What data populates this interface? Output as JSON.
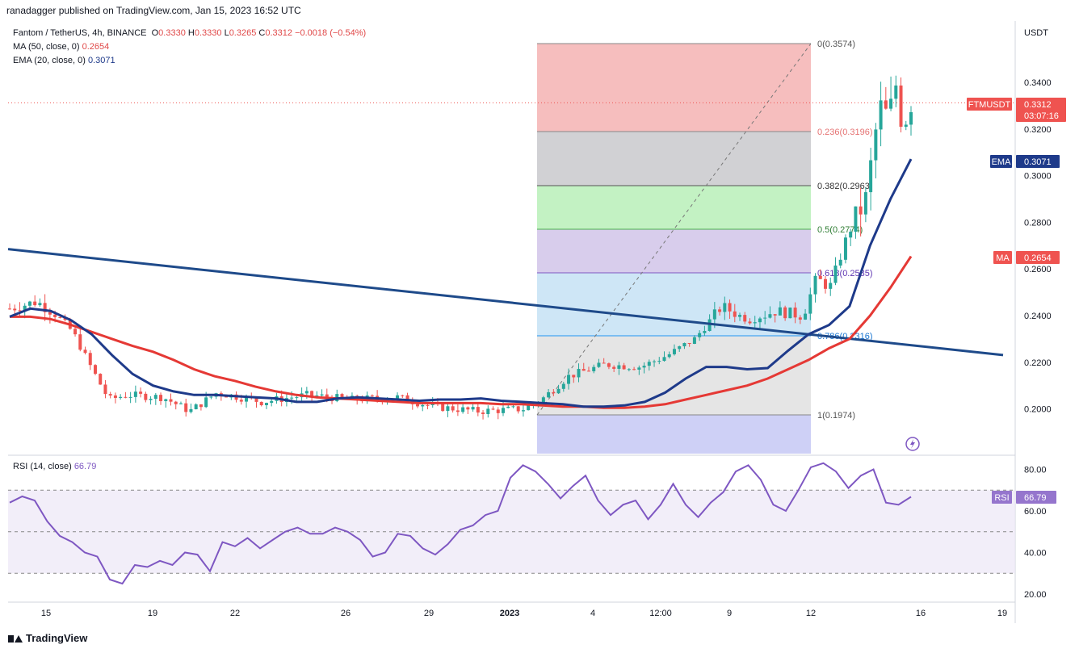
{
  "header": {
    "publisher": "ranadagger published on TradingView.com, Jan 15, 2023 16:52 UTC"
  },
  "legend": {
    "symbol": "Fantom / TetherUS, 4h, BINANCE",
    "ohlc": [
      {
        "k": "O",
        "v": "0.3330"
      },
      {
        "k": "H",
        "v": "0.3330"
      },
      {
        "k": "L",
        "v": "0.3265"
      },
      {
        "k": "C",
        "v": "0.3312"
      }
    ],
    "change": "−0.0018 (−0.54%)",
    "ma_label": "MA (50, close, 0)",
    "ma_value": "0.2654",
    "ema_label": "EMA (20, close, 0)",
    "ema_value": "0.3071",
    "rsi_label": "RSI (14, close)",
    "rsi_value": "66.79"
  },
  "badges": {
    "ticker": "FTMUSDT",
    "price": "0.3312",
    "countdown": "03:07:16",
    "ema_label": "EMA",
    "ema_value": "0.3071",
    "ma_label": "MA",
    "ma_value": "0.2654",
    "rsi_label": "RSI",
    "rsi_value": "66.79"
  },
  "footer": {
    "brand": "TradingView"
  },
  "colors": {
    "up": "#26a69a",
    "down": "#ef5350",
    "ema": "#1e3a8a",
    "ma": "#e53935",
    "rsi": "#7e57c2",
    "trendline": "#1e4a8a"
  },
  "chart_data": {
    "type": "candlestick",
    "price_axis": {
      "currency": "USDT",
      "ticks": [
        "0.3400",
        "0.3200",
        "0.3000",
        "0.2800",
        "0.2600",
        "0.2400",
        "0.2200",
        "0.2000"
      ],
      "tick_values": [
        0.34,
        0.32,
        0.3,
        0.28,
        0.26,
        0.24,
        0.22,
        0.2
      ]
    },
    "time_axis": {
      "labels": [
        "15",
        "19",
        "22",
        "26",
        "29",
        "2023",
        "4",
        "12:00",
        "9",
        "12",
        "16",
        "19"
      ],
      "bold": [
        "2023"
      ]
    },
    "fibonacci": [
      {
        "ratio": "0",
        "price": "0.3574",
        "label": "0(0.3574)",
        "fill": "#f5b3b3"
      },
      {
        "ratio": "0.236",
        "price": "0.3196",
        "label": "0.236(0.3196)",
        "fill": "#c9c9cc"
      },
      {
        "ratio": "0.382",
        "price": "0.2963",
        "label": "0.382(0.2963)",
        "fill": "#b9f0b9"
      },
      {
        "ratio": "0.5",
        "price": "0.2774",
        "label": "0.5(0.2774)",
        "fill": "#d1c4e9"
      },
      {
        "ratio": "0.618",
        "price": "0.2585",
        "label": "0.618(0.2585)",
        "fill": "#c6e2f5"
      },
      {
        "ratio": "0.786",
        "price": "0.2316",
        "label": "0.786(0.2316)",
        "fill": "#e1e1e1"
      },
      {
        "ratio": "1",
        "price": "0.1974",
        "label": "1(0.1974)",
        "fill": "#c5c8f5"
      }
    ],
    "trendline": {
      "start": 0.2685,
      "end": 0.2231
    },
    "last_price": 0.3312,
    "ema_last": 0.3071,
    "ma_last": 0.2654,
    "ema_series": [
      0.2395,
      0.243,
      0.242,
      0.238,
      0.232,
      0.223,
      0.215,
      0.21,
      0.2075,
      0.206,
      0.206,
      0.2055,
      0.205,
      0.2045,
      0.203,
      0.203,
      0.2045,
      0.205,
      0.2045,
      0.204,
      0.2035,
      0.204,
      0.204,
      0.2045,
      0.2035,
      0.203,
      0.2025,
      0.202,
      0.201,
      0.201,
      0.2015,
      0.203,
      0.207,
      0.213,
      0.218,
      0.218,
      0.217,
      0.2175,
      0.225,
      0.232,
      0.236,
      0.244,
      0.27,
      0.29,
      0.3071
    ],
    "ma_series": [
      0.2395,
      0.2395,
      0.2385,
      0.236,
      0.233,
      0.23,
      0.227,
      0.2245,
      0.221,
      0.217,
      0.214,
      0.212,
      0.2095,
      0.2075,
      0.206,
      0.205,
      0.2045,
      0.204,
      0.2035,
      0.203,
      0.2025,
      0.2025,
      0.2025,
      0.2025,
      0.202,
      0.202,
      0.2015,
      0.201,
      0.201,
      0.2005,
      0.2005,
      0.201,
      0.202,
      0.204,
      0.206,
      0.208,
      0.21,
      0.213,
      0.217,
      0.221,
      0.226,
      0.23,
      0.24,
      0.252,
      0.2654
    ],
    "rsi": {
      "levels": [
        30,
        50,
        70
      ],
      "ticks": [
        "80.00",
        "60.00",
        "40.00",
        "20.00"
      ],
      "tick_values": [
        80,
        60,
        40,
        20
      ],
      "last": 66.79,
      "series": [
        64,
        67,
        65,
        55,
        48,
        45,
        40,
        38,
        27,
        25,
        34,
        33,
        36,
        34,
        40,
        39,
        31,
        45,
        43,
        47,
        42,
        46,
        50,
        52,
        49,
        49,
        52,
        50,
        46,
        38,
        40,
        49,
        48,
        42,
        39,
        44,
        51,
        53,
        58,
        60,
        76,
        82,
        79,
        73,
        66,
        72,
        77,
        65,
        58,
        63,
        65,
        56,
        63,
        73,
        63,
        57,
        64,
        69,
        79,
        82,
        75,
        63,
        60,
        70,
        81,
        83,
        79,
        71,
        77,
        80,
        64,
        63,
        66.79
      ]
    }
  }
}
